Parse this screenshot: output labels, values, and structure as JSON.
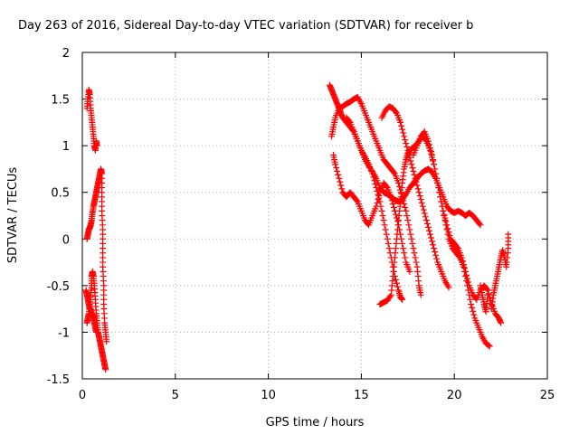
{
  "chart_data": {
    "type": "scatter",
    "title": "Day 263 of 2016, Sidereal Day-to-day VTEC variation (SDTVAR) for receiver b",
    "xlabel": "GPS time / hours",
    "ylabel": "SDTVAR / TECUs",
    "xlim": [
      0,
      25
    ],
    "ylim": [
      -1.5,
      2
    ],
    "xticks": [
      "0",
      "5",
      "10",
      "15",
      "20",
      "25"
    ],
    "yticks": [
      "-1.5",
      "-1",
      "-0.5",
      "0",
      "0.5",
      "1",
      "1.5",
      "2"
    ],
    "grid": true,
    "legend": "none",
    "marker": "plus",
    "color": "#ff0000",
    "series": [
      {
        "values": [
          [
            0.25,
            1.4
          ],
          [
            0.3,
            1.5
          ],
          [
            0.35,
            1.6
          ],
          [
            0.4,
            1.55
          ],
          [
            0.45,
            1.4
          ],
          [
            0.5,
            1.3
          ],
          [
            0.55,
            1.2
          ],
          [
            0.6,
            1.1
          ],
          [
            0.65,
            1.0
          ],
          [
            0.7,
            0.95
          ],
          [
            0.75,
            1.05
          ],
          [
            0.78,
            1.0
          ]
        ]
      },
      {
        "values": [
          [
            0.25,
            0.0
          ],
          [
            0.3,
            0.05
          ],
          [
            0.35,
            0.1
          ],
          [
            0.4,
            0.12
          ],
          [
            0.45,
            0.15
          ],
          [
            0.5,
            0.2
          ],
          [
            0.55,
            0.28
          ],
          [
            0.6,
            0.35
          ],
          [
            0.65,
            0.4
          ],
          [
            0.7,
            0.45
          ],
          [
            0.75,
            0.5
          ],
          [
            0.8,
            0.55
          ],
          [
            0.85,
            0.6
          ],
          [
            0.9,
            0.65
          ],
          [
            0.95,
            0.7
          ],
          [
            1.0,
            0.75
          ],
          [
            1.05,
            0.7
          ],
          [
            1.05,
            0.5
          ],
          [
            1.05,
            0.3
          ],
          [
            1.1,
            0.1
          ],
          [
            1.1,
            -0.1
          ],
          [
            1.1,
            -0.3
          ],
          [
            1.15,
            -0.5
          ],
          [
            1.15,
            -0.7
          ],
          [
            1.2,
            -0.9
          ],
          [
            1.25,
            -1.0
          ],
          [
            1.3,
            -1.1
          ]
        ]
      },
      {
        "values": [
          [
            0.25,
            -0.9
          ],
          [
            0.3,
            -0.85
          ],
          [
            0.35,
            -0.8
          ],
          [
            0.4,
            -0.7
          ],
          [
            0.45,
            -0.6
          ],
          [
            0.5,
            -0.5
          ],
          [
            0.5,
            -0.4
          ],
          [
            0.55,
            -0.35
          ],
          [
            0.6,
            -0.4
          ],
          [
            0.65,
            -0.5
          ],
          [
            0.7,
            -0.65
          ],
          [
            0.75,
            -0.8
          ],
          [
            0.8,
            -0.9
          ],
          [
            0.85,
            -1.0
          ],
          [
            0.9,
            -1.05
          ],
          [
            0.95,
            -1.1
          ],
          [
            1.0,
            -1.15
          ],
          [
            1.05,
            -1.2
          ],
          [
            1.1,
            -1.25
          ],
          [
            1.15,
            -1.3
          ],
          [
            1.2,
            -1.35
          ],
          [
            1.25,
            -1.4
          ]
        ]
      },
      {
        "values": [
          [
            0.2,
            -0.55
          ],
          [
            0.25,
            -0.6
          ],
          [
            0.3,
            -0.65
          ],
          [
            0.35,
            -0.7
          ],
          [
            0.4,
            -0.75
          ],
          [
            0.45,
            -0.75
          ],
          [
            0.5,
            -0.8
          ],
          [
            0.55,
            -0.82
          ],
          [
            0.6,
            -0.85
          ],
          [
            0.65,
            -0.9
          ],
          [
            0.7,
            -0.95
          ],
          [
            0.75,
            -1.0
          ]
        ]
      },
      {
        "values": [
          [
            13.3,
            1.65
          ],
          [
            13.4,
            1.6
          ],
          [
            13.5,
            1.55
          ],
          [
            13.6,
            1.5
          ],
          [
            13.7,
            1.45
          ],
          [
            13.8,
            1.4
          ],
          [
            13.9,
            1.35
          ],
          [
            14.0,
            1.3
          ],
          [
            14.2,
            1.25
          ],
          [
            14.4,
            1.2
          ],
          [
            14.6,
            1.15
          ],
          [
            14.8,
            1.05
          ],
          [
            15.0,
            0.95
          ],
          [
            15.2,
            0.85
          ],
          [
            15.4,
            0.78
          ],
          [
            15.6,
            0.72
          ],
          [
            15.8,
            0.65
          ],
          [
            16.0,
            0.55
          ],
          [
            16.2,
            0.5
          ],
          [
            16.4,
            0.48
          ],
          [
            16.6,
            0.45
          ],
          [
            16.8,
            0.42
          ],
          [
            17.0,
            0.4
          ],
          [
            17.2,
            0.42
          ],
          [
            17.4,
            0.48
          ],
          [
            17.6,
            0.55
          ],
          [
            17.8,
            0.6
          ],
          [
            18.0,
            0.65
          ],
          [
            18.2,
            0.7
          ],
          [
            18.4,
            0.73
          ],
          [
            18.6,
            0.75
          ],
          [
            18.8,
            0.72
          ],
          [
            19.0,
            0.65
          ],
          [
            19.2,
            0.55
          ],
          [
            19.4,
            0.45
          ],
          [
            19.6,
            0.35
          ],
          [
            19.8,
            0.3
          ],
          [
            20.0,
            0.28
          ],
          [
            20.2,
            0.3
          ],
          [
            20.4,
            0.28
          ],
          [
            20.6,
            0.25
          ],
          [
            20.8,
            0.28
          ],
          [
            21.0,
            0.25
          ],
          [
            21.2,
            0.2
          ],
          [
            21.4,
            0.15
          ]
        ]
      },
      {
        "values": [
          [
            13.4,
            1.1
          ],
          [
            13.5,
            1.2
          ],
          [
            13.6,
            1.3
          ],
          [
            13.8,
            1.4
          ],
          [
            14.0,
            1.42
          ],
          [
            14.2,
            1.45
          ],
          [
            14.4,
            1.47
          ],
          [
            14.6,
            1.5
          ],
          [
            14.8,
            1.52
          ],
          [
            15.0,
            1.45
          ],
          [
            15.2,
            1.35
          ],
          [
            15.4,
            1.25
          ],
          [
            15.6,
            1.15
          ],
          [
            15.8,
            1.05
          ],
          [
            16.0,
            0.95
          ],
          [
            16.2,
            0.85
          ],
          [
            16.4,
            0.8
          ],
          [
            16.6,
            0.75
          ],
          [
            16.8,
            0.7
          ],
          [
            17.0,
            0.6
          ],
          [
            17.2,
            0.45
          ],
          [
            17.4,
            0.3
          ],
          [
            17.6,
            0.1
          ],
          [
            17.8,
            -0.1
          ],
          [
            18.0,
            -0.3
          ],
          [
            18.1,
            -0.5
          ],
          [
            18.2,
            -0.6
          ]
        ]
      },
      {
        "values": [
          [
            13.5,
            0.9
          ],
          [
            13.6,
            0.8
          ],
          [
            13.8,
            0.65
          ],
          [
            14.0,
            0.5
          ],
          [
            14.2,
            0.45
          ],
          [
            14.4,
            0.5
          ],
          [
            14.6,
            0.45
          ],
          [
            14.8,
            0.4
          ],
          [
            15.0,
            0.3
          ],
          [
            15.2,
            0.2
          ],
          [
            15.4,
            0.15
          ],
          [
            15.6,
            0.25
          ],
          [
            15.8,
            0.35
          ],
          [
            16.0,
            0.5
          ],
          [
            16.2,
            0.6
          ],
          [
            16.4,
            0.55
          ],
          [
            16.6,
            0.45
          ],
          [
            16.8,
            0.3
          ],
          [
            17.0,
            0.15
          ],
          [
            17.2,
            -0.05
          ],
          [
            17.4,
            -0.25
          ],
          [
            17.6,
            -0.35
          ]
        ]
      },
      {
        "values": [
          [
            14.2,
            1.3
          ],
          [
            14.4,
            1.25
          ],
          [
            14.6,
            1.15
          ],
          [
            14.8,
            1.05
          ],
          [
            15.0,
            0.95
          ],
          [
            15.2,
            0.88
          ],
          [
            15.4,
            0.8
          ],
          [
            15.6,
            0.7
          ],
          [
            15.8,
            0.55
          ],
          [
            16.0,
            0.4
          ],
          [
            16.2,
            0.2
          ],
          [
            16.4,
            0.0
          ],
          [
            16.6,
            -0.2
          ],
          [
            16.8,
            -0.4
          ],
          [
            17.0,
            -0.55
          ],
          [
            17.1,
            -0.62
          ],
          [
            17.2,
            -0.65
          ]
        ]
      },
      {
        "values": [
          [
            16.1,
            1.3
          ],
          [
            16.3,
            1.38
          ],
          [
            16.5,
            1.42
          ],
          [
            16.7,
            1.4
          ],
          [
            16.9,
            1.35
          ],
          [
            17.1,
            1.25
          ],
          [
            17.3,
            1.1
          ],
          [
            17.5,
            0.95
          ],
          [
            17.7,
            0.8
          ],
          [
            17.9,
            0.65
          ],
          [
            18.1,
            0.5
          ],
          [
            18.3,
            0.35
          ],
          [
            18.5,
            0.2
          ],
          [
            18.7,
            0.05
          ],
          [
            18.9,
            -0.1
          ],
          [
            19.1,
            -0.25
          ],
          [
            19.3,
            -0.35
          ],
          [
            19.5,
            -0.45
          ],
          [
            19.7,
            -0.52
          ]
        ]
      },
      {
        "values": [
          [
            16.0,
            -0.7
          ],
          [
            16.2,
            -0.68
          ],
          [
            16.4,
            -0.66
          ],
          [
            16.6,
            -0.6
          ],
          [
            16.7,
            -0.4
          ],
          [
            16.8,
            -0.2
          ],
          [
            16.9,
            0.0
          ],
          [
            17.0,
            0.2
          ],
          [
            17.1,
            0.4
          ],
          [
            17.2,
            0.6
          ],
          [
            17.3,
            0.75
          ],
          [
            17.4,
            0.85
          ],
          [
            17.5,
            0.92
          ],
          [
            17.7,
            0.97
          ],
          [
            17.9,
            1.0
          ],
          [
            18.1,
            1.05
          ],
          [
            18.3,
            1.1
          ],
          [
            18.5,
            1.05
          ],
          [
            18.7,
            0.95
          ],
          [
            18.9,
            0.8
          ],
          [
            19.1,
            0.6
          ],
          [
            19.3,
            0.4
          ],
          [
            19.5,
            0.2
          ],
          [
            19.7,
            0.0
          ],
          [
            19.9,
            -0.1
          ],
          [
            20.1,
            -0.15
          ],
          [
            20.3,
            -0.2
          ],
          [
            20.5,
            -0.3
          ],
          [
            20.7,
            -0.5
          ],
          [
            20.9,
            -0.7
          ],
          [
            21.1,
            -0.85
          ],
          [
            21.3,
            -0.95
          ],
          [
            21.5,
            -1.05
          ],
          [
            21.7,
            -1.12
          ],
          [
            21.9,
            -1.15
          ]
        ]
      },
      {
        "values": [
          [
            17.8,
            0.9
          ],
          [
            18.0,
            1.0
          ],
          [
            18.2,
            1.1
          ],
          [
            18.4,
            1.15
          ],
          [
            18.6,
            1.05
          ],
          [
            18.8,
            0.9
          ],
          [
            19.0,
            0.7
          ],
          [
            19.2,
            0.5
          ],
          [
            19.4,
            0.3
          ],
          [
            19.6,
            0.15
          ],
          [
            19.8,
            0.0
          ],
          [
            20.0,
            -0.05
          ],
          [
            20.2,
            -0.1
          ],
          [
            20.4,
            -0.2
          ],
          [
            20.6,
            -0.35
          ],
          [
            20.8,
            -0.5
          ],
          [
            21.0,
            -0.6
          ],
          [
            21.2,
            -0.65
          ],
          [
            21.4,
            -0.55
          ],
          [
            21.6,
            -0.5
          ],
          [
            21.8,
            -0.55
          ],
          [
            22.0,
            -0.7
          ],
          [
            22.2,
            -0.8
          ],
          [
            22.4,
            -0.85
          ],
          [
            22.5,
            -0.9
          ]
        ]
      },
      {
        "values": [
          [
            22.0,
            -0.75
          ],
          [
            22.1,
            -0.6
          ],
          [
            22.2,
            -0.5
          ],
          [
            22.3,
            -0.4
          ],
          [
            22.4,
            -0.3
          ],
          [
            22.5,
            -0.2
          ],
          [
            22.6,
            -0.12
          ],
          [
            22.7,
            -0.2
          ],
          [
            22.8,
            -0.3
          ],
          [
            22.9,
            -0.1
          ],
          [
            22.9,
            0.05
          ]
        ]
      },
      {
        "values": [
          [
            21.4,
            -0.5
          ],
          [
            21.5,
            -0.6
          ],
          [
            21.6,
            -0.7
          ],
          [
            21.7,
            -0.78
          ],
          [
            21.8,
            -0.6
          ]
        ]
      }
    ]
  }
}
